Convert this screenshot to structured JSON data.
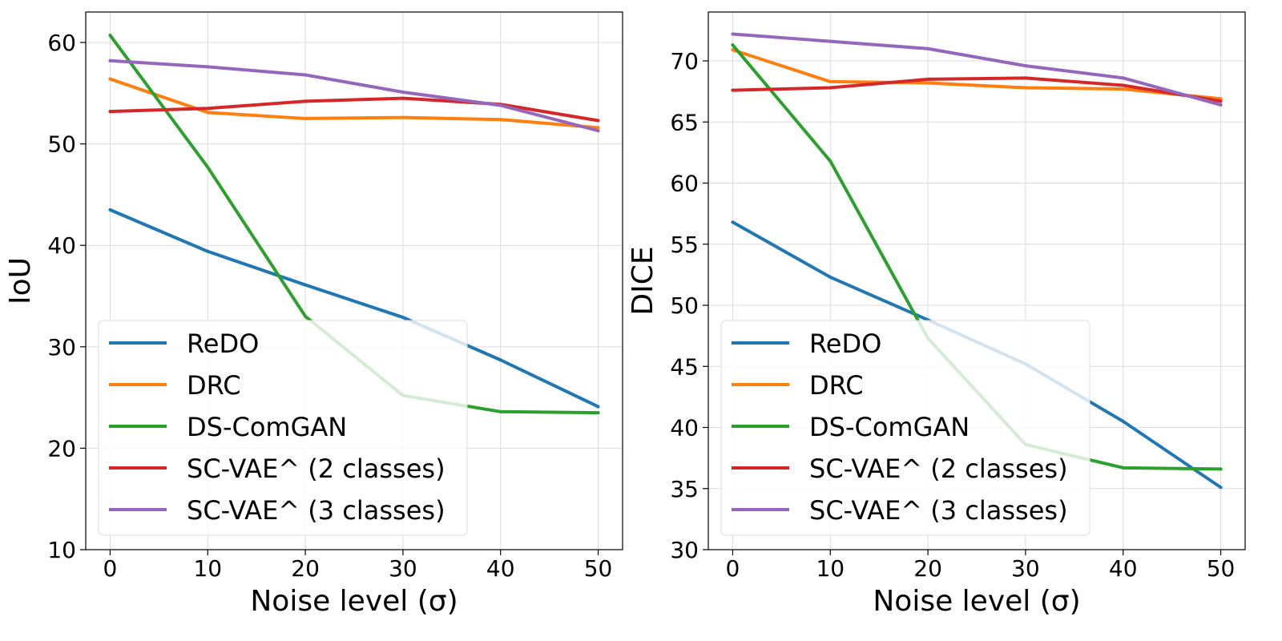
{
  "chart_data": [
    {
      "type": "line",
      "xlabel": "Noise level (σ)",
      "ylabel": "IoU",
      "x": [
        0,
        10,
        20,
        30,
        40,
        50
      ],
      "xticks": [
        "0",
        "10",
        "20",
        "30",
        "40",
        "50"
      ],
      "ylim": [
        10,
        63
      ],
      "yticks": [
        10,
        20,
        30,
        40,
        50,
        60
      ],
      "grid": true,
      "legend_position": "lower-left",
      "series": [
        {
          "name": "ReDO",
          "color": "#1f77b4",
          "values": [
            43.5,
            39.4,
            36.1,
            32.9,
            28.7,
            24.1
          ]
        },
        {
          "name": "DRC",
          "color": "#ff7f0e",
          "values": [
            56.4,
            53.1,
            52.5,
            52.6,
            52.4,
            51.6
          ]
        },
        {
          "name": "DS-ComGAN",
          "color": "#2ca02c",
          "values": [
            60.7,
            47.7,
            33.0,
            25.2,
            23.6,
            23.5
          ]
        },
        {
          "name": "SC-VAE^ (2 classes)",
          "color": "#d62728",
          "values": [
            53.2,
            53.5,
            54.2,
            54.5,
            53.9,
            52.3
          ]
        },
        {
          "name": "SC-VAE^ (3 classes)",
          "color": "#9467bd",
          "values": [
            58.2,
            57.6,
            56.8,
            55.1,
            53.8,
            51.3
          ]
        }
      ]
    },
    {
      "type": "line",
      "xlabel": "Noise level (σ)",
      "ylabel": "DICE",
      "x": [
        0,
        10,
        20,
        30,
        40,
        50
      ],
      "xticks": [
        "0",
        "10",
        "20",
        "30",
        "40",
        "50"
      ],
      "ylim": [
        30,
        74
      ],
      "yticks": [
        30,
        35,
        40,
        45,
        50,
        55,
        60,
        65,
        70
      ],
      "grid": true,
      "legend_position": "lower-left",
      "series": [
        {
          "name": "ReDO",
          "color": "#1f77b4",
          "values": [
            56.8,
            52.3,
            48.8,
            45.2,
            40.5,
            35.1
          ]
        },
        {
          "name": "DRC",
          "color": "#ff7f0e",
          "values": [
            70.9,
            68.3,
            68.2,
            67.8,
            67.7,
            66.9
          ]
        },
        {
          "name": "DS-ComGAN",
          "color": "#2ca02c",
          "values": [
            71.3,
            61.8,
            47.3,
            38.6,
            36.7,
            36.6
          ]
        },
        {
          "name": "SC-VAE^ (2 classes)",
          "color": "#d62728",
          "values": [
            67.6,
            67.8,
            68.5,
            68.6,
            68.0,
            66.7
          ]
        },
        {
          "name": "SC-VAE^ (3 classes)",
          "color": "#9467bd",
          "values": [
            72.2,
            71.6,
            71.0,
            69.6,
            68.6,
            66.4
          ]
        }
      ]
    }
  ]
}
